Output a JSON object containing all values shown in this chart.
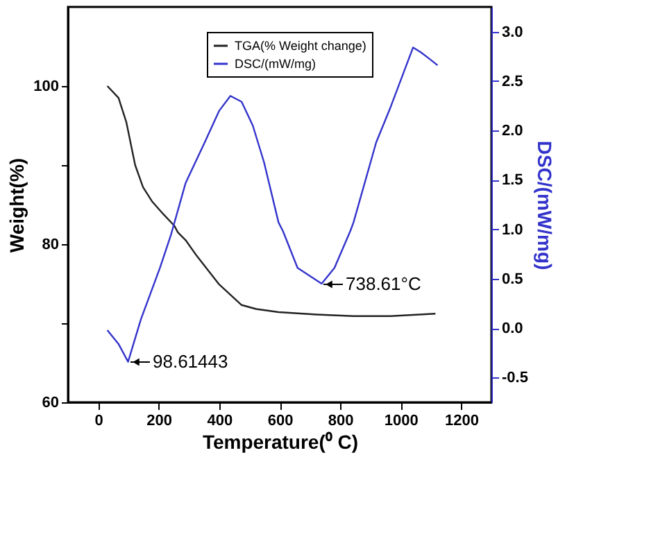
{
  "chart_data": {
    "type": "line",
    "xlabel": "Temperature(⁰ C)",
    "ylabel": "Weight(%)",
    "y2label": "DSC/(mW/mg)",
    "xlim": [
      -100,
      1300
    ],
    "xticks": [
      0,
      200,
      400,
      600,
      800,
      1000,
      1200
    ],
    "ylim": [
      60,
      110
    ],
    "yticks": [
      60,
      {
        "value": 70,
        "label": null
      },
      80,
      {
        "value": 90,
        "label": null
      },
      100
    ],
    "y2lim": [
      -0.75,
      3.25
    ],
    "y2ticks": [
      -0.5,
      {
        "value": 0,
        "label": "0.0"
      },
      0.5,
      {
        "value": 1,
        "label": "1.0"
      },
      1.5,
      {
        "value": 2,
        "label": "2.0"
      },
      2.5,
      {
        "value": 3,
        "label": "3.0"
      }
    ],
    "legend": "top",
    "grid": false,
    "series": [
      {
        "name": "TGA(% Weight change)",
        "color": "#222222",
        "axis": "y",
        "x": [
          30,
          67,
          93,
          122,
          148,
          178,
          215,
          252,
          263,
          289,
          326,
          400,
          474,
          522,
          596,
          722,
          844,
          967,
          1115
        ],
        "values": [
          100,
          98.5,
          95.4,
          90,
          87.2,
          85.4,
          83.8,
          82.3,
          81.5,
          80.5,
          78.5,
          74.9,
          72.3,
          71.8,
          71.4,
          71.1,
          70.9,
          70.9,
          71.2
        ]
      },
      {
        "name": "DSC/(mW/mg)",
        "color": "#3333cc",
        "axis": "y2",
        "x": [
          30,
          67,
          98.61443,
          141,
          204,
          240,
          289,
          352,
          400,
          437,
          474,
          511,
          548,
          596,
          611,
          659,
          738.61,
          781,
          833,
          844,
          919,
          967,
          1004,
          1041,
          1067,
          1093,
          1122
        ],
        "values": [
          -0.02,
          -0.16,
          -0.34,
          0.09,
          0.61,
          0.94,
          1.47,
          1.88,
          2.2,
          2.35,
          2.29,
          2.05,
          1.68,
          1.07,
          0.98,
          0.61,
          0.45,
          0.61,
          0.98,
          1.07,
          1.88,
          2.24,
          2.54,
          2.84,
          2.79,
          2.73,
          2.66
        ]
      }
    ],
    "annotations": [
      "98.61443",
      "738.61°C"
    ]
  }
}
